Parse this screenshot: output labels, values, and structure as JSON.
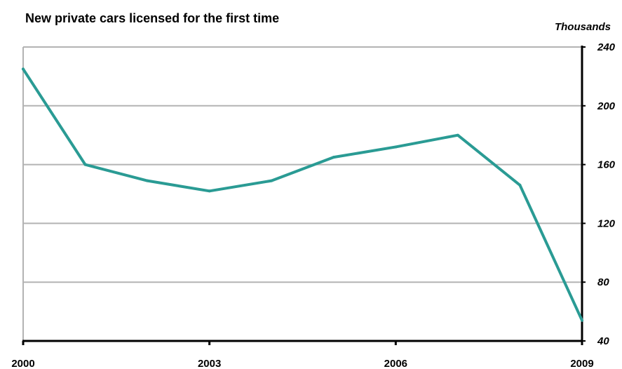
{
  "chart_data": {
    "type": "line",
    "title": "New private cars licensed for the first time",
    "unit_label": "Thousands",
    "x": [
      2000,
      2001,
      2002,
      2003,
      2004,
      2005,
      2006,
      2007,
      2008,
      2009
    ],
    "x_tick_labels": [
      "2000",
      "2003",
      "2006",
      "2009"
    ],
    "x_tick_values": [
      2000,
      2003,
      2006,
      2009
    ],
    "xlim": [
      2000,
      2009
    ],
    "y_tick_labels": [
      "40",
      "80",
      "120",
      "160",
      "200",
      "240"
    ],
    "y_tick_values": [
      40,
      80,
      120,
      160,
      200,
      240
    ],
    "ylim": [
      40,
      240
    ],
    "y_axis_side": "right",
    "grid": true,
    "series": [
      {
        "values": [
          225,
          160,
          149,
          142,
          149,
          165,
          172,
          180,
          146,
          54
        ],
        "color": "#2a9b94"
      }
    ],
    "gridline_color": "#b3b3b3"
  }
}
